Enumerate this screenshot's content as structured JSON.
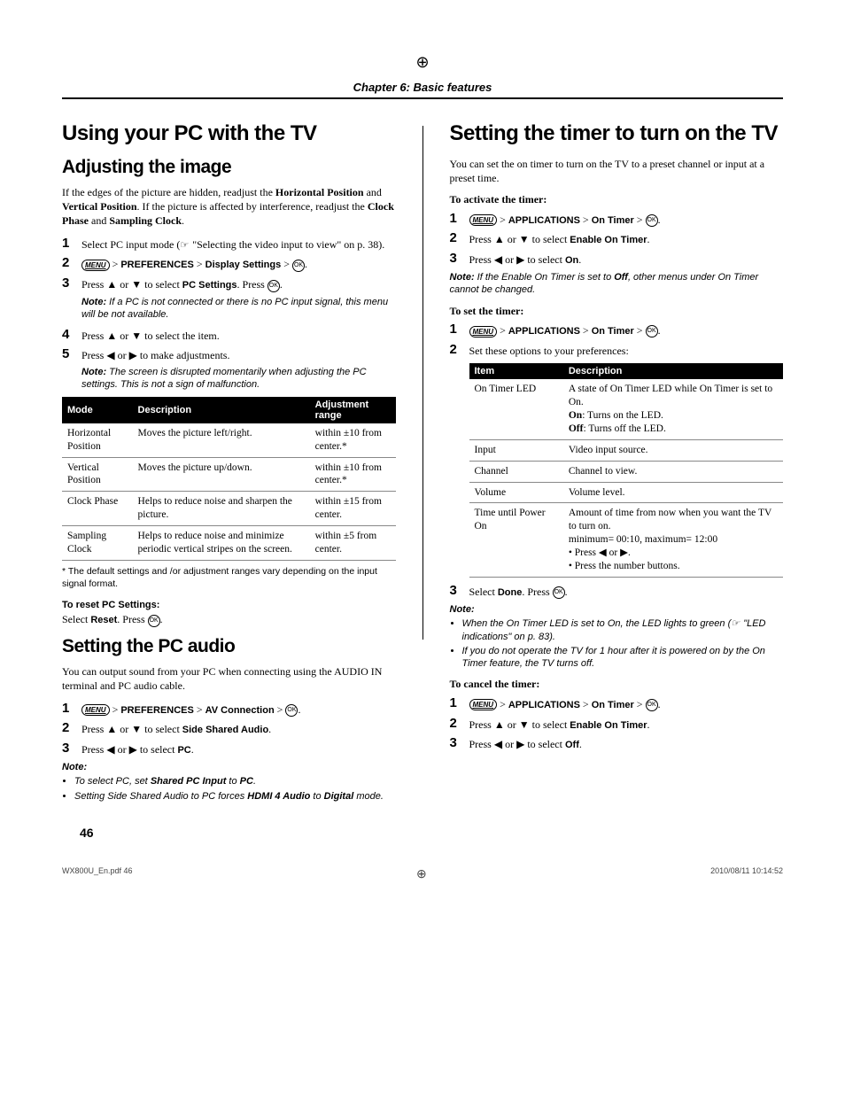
{
  "chapter": "Chapter 6: Basic features",
  "left": {
    "h1": "Using your PC with the TV",
    "h2a": "Adjusting the image",
    "intro": "If the edges of the picture are hidden, readjust the <b>Horizontal Position</b> and <b>Vertical Position</b>. If the picture is affected by interference, readjust the <b>Clock Phase</b> and <b>Sampling Clock</b>.",
    "steps1": [
      "Select PC input mode (<span class='reficon'></span> \"Selecting the video input to view\" on p. 38).",
      "<span class='menu-btn'>MENU</span> > <b class='sans'>PREFERENCES</b> > <b class='sans'>Display Settings</b> > <span class='ok-btn'>OK</span>.",
      "Press <span class='arrow'>▲</span> or <span class='arrow'>▼</span> to select <b class='sans'>PC Settings</b>. Press <span class='ok-btn'>OK</span>.",
      "Press <span class='arrow'>▲</span> or <span class='arrow'>▼</span> to select the item.",
      "Press <span class='arrow'>◀</span> or <span class='arrow'>▶</span> to make adjustments."
    ],
    "note1": "<b>Note:</b>  If a PC is not connected or there is no PC input signal, this menu will be not available.",
    "note2": "<b>Note:</b>  The screen is disrupted momentarily when adjusting the PC settings. This is not a sign of malfunction.",
    "table1": {
      "headers": [
        "Mode",
        "Description",
        "Adjustment range"
      ],
      "rows": [
        [
          "Horizontal Position",
          "Moves the picture left/right.",
          "within ±10 from center.*"
        ],
        [
          "Vertical Position",
          "Moves the picture up/down.",
          "within ±10 from center.*"
        ],
        [
          "Clock Phase",
          "Helps to reduce noise and sharpen the picture.",
          "within ±15 from center."
        ],
        [
          "Sampling Clock",
          "Helps to reduce noise and minimize periodic vertical stripes on the screen.",
          "within ±5 from center."
        ]
      ]
    },
    "footnote": "* The default settings and /or adjustment ranges vary depending on the input signal format.",
    "reset_h": "To reset PC Settings:",
    "reset_t": "Select <b class='sans'>Reset</b>. Press <span class='ok-btn'>OK</span>.",
    "h2b": "Setting the PC audio",
    "pcaudio_intro": "You can output  sound from your PC when connecting using the AUDIO IN terminal and PC audio cable.",
    "steps2": [
      "<span class='menu-btn'>MENU</span> > <b class='sans'>PREFERENCES</b> > <b class='sans'>AV Connection</b> > <span class='ok-btn'>OK</span>.",
      "Press <span class='arrow'>▲</span> or <span class='arrow'>▼</span> to select <b class='sans'>Side Shared Audio</b>.",
      "Press <span class='arrow'>◀</span> or <span class='arrow'>▶</span> to select <b class='sans'>PC</b>."
    ],
    "note3_label": "Note:",
    "note3_items": [
      "To select PC, set <b>Shared PC Input</b> to <b>PC</b>.",
      "Setting Side Shared Audio to PC forces <b>HDMI 4 Audio</b> to <b>Digital</b> mode."
    ]
  },
  "right": {
    "h1": "Setting the timer to turn on the TV",
    "intro": "You can set the on timer to turn on the TV to a preset channel or input at a preset time.",
    "sub1": "To activate the timer:",
    "steps1": [
      "<span class='menu-btn'>MENU</span> > <b class='sans'>APPLICATIONS</b> > <b class='sans'>On Timer</b> > <span class='ok-btn'>OK</span>.",
      "Press <span class='arrow'>▲</span> or <span class='arrow'>▼</span> to select <b class='sans'>Enable On Timer</b>.",
      "Press <span class='arrow'>◀</span> or <span class='arrow'>▶</span> to select <b class='sans'>On</b>."
    ],
    "note1": "<b>Note:</b> If the Enable On Timer is set to <b>Off</b>, other menus under On Timer cannot be changed.",
    "sub2": "To set the timer:",
    "steps2": [
      "<span class='menu-btn'>MENU</span> > <b class='sans'>APPLICATIONS</b> > <b class='sans'>On Timer</b> > <span class='ok-btn'>OK</span>.",
      "Set these options to your preferences:"
    ],
    "table1": {
      "headers": [
        "Item",
        "Description"
      ],
      "rows": [
        [
          "On Timer LED",
          "A state of On Timer LED while On Timer is set to On.<br><b>On</b>: Turns on the LED.<br><b>Off</b>: Turns off the LED."
        ],
        [
          "Input",
          "Video input source."
        ],
        [
          "Channel",
          "Channel to view."
        ],
        [
          "Volume",
          "Volume level."
        ],
        [
          "Time until Power On",
          "Amount of time from now when you want the TV to turn on.<br>minimum= 00:10, maximum= 12:00<br>• Press <span class='arrow'>◀</span> or <span class='arrow'>▶</span>.<br>• Press the number buttons."
        ]
      ]
    },
    "step3": "Select <b class='sans'>Done</b>. Press <span class='ok-btn'>OK</span>.",
    "note2_label": "Note:",
    "note2_items": [
      "When the On Timer LED is set to On, the LED lights to green (<span class='reficon'></span> \"LED indications\" on p. 83).",
      "If you do not operate the TV for 1 hour after it is powered on by the On Timer feature, the TV turns off."
    ],
    "sub3": "To cancel the timer:",
    "steps3": [
      "<span class='menu-btn'>MENU</span> > <b class='sans'>APPLICATIONS</b> > <b class='sans'>On Timer</b> > <span class='ok-btn'>OK</span>.",
      "Press <span class='arrow'>▲</span> or <span class='arrow'>▼</span> to select <b class='sans'>Enable On Timer</b>.",
      "Press <span class='arrow'>◀</span> or <span class='arrow'>▶</span> to select <b class='sans'>Off</b>."
    ]
  },
  "page_number": "46",
  "footer_left": "WX800U_En.pdf   46",
  "footer_right": "2010/08/11   10:14:52"
}
